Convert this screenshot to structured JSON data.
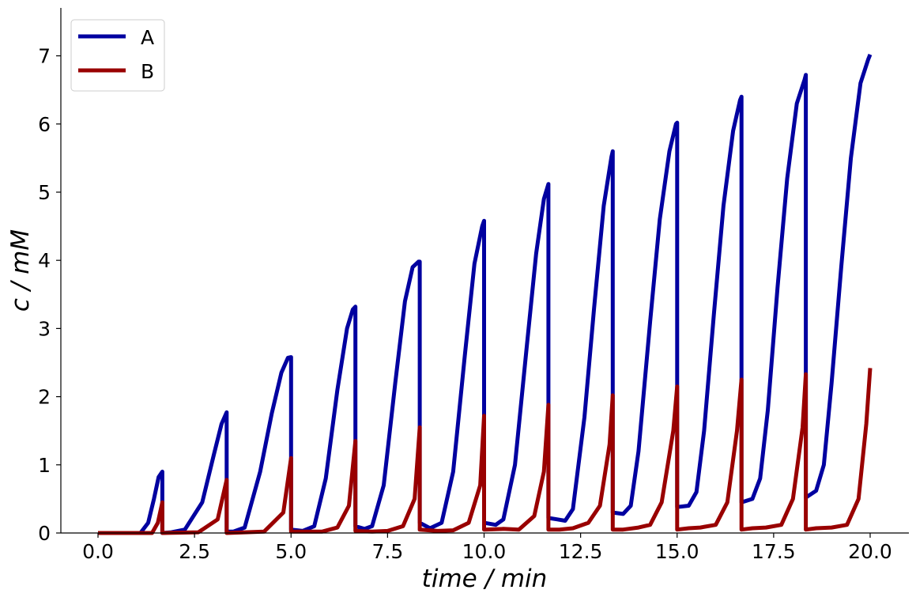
{
  "chart_data": {
    "type": "line",
    "title": "",
    "xlabel": "time / min",
    "ylabel": "c / mM",
    "xlim": [
      -0.9,
      21.0
    ],
    "ylim": [
      0,
      7.7
    ],
    "xticks": [
      0,
      2.5,
      5,
      7.5,
      10,
      12.5,
      15,
      17.5,
      20
    ],
    "xtick_labels": [
      "0.0",
      "2.5",
      "5.0",
      "7.5",
      "10.0",
      "12.5",
      "15.0",
      "17.5",
      "20.0"
    ],
    "yticks": [
      0,
      1,
      2,
      3,
      4,
      5,
      6,
      7
    ],
    "ytick_labels": [
      "0",
      "1",
      "2",
      "3",
      "4",
      "5",
      "6",
      "7"
    ],
    "grid": false,
    "legend_position": "top-left",
    "colors": {
      "A": "#0000a0",
      "B": "#990000"
    },
    "series": [
      {
        "name": "A",
        "x": [
          0,
          1.1,
          1.3,
          1.45,
          1.57,
          1.667,
          1.667,
          1.9,
          2.25,
          2.7,
          3.0,
          3.2,
          3.333,
          3.333,
          3.5,
          3.8,
          4.2,
          4.5,
          4.75,
          4.92,
          5.0,
          5.0,
          5.3,
          5.6,
          5.9,
          6.2,
          6.45,
          6.6,
          6.667,
          6.667,
          6.9,
          7.1,
          7.4,
          7.7,
          7.95,
          8.15,
          8.3,
          8.333,
          8.333,
          8.6,
          8.9,
          9.2,
          9.5,
          9.75,
          9.95,
          10.0,
          10.0,
          10.3,
          10.5,
          10.8,
          11.1,
          11.35,
          11.55,
          11.667,
          11.667,
          11.9,
          12.1,
          12.3,
          12.6,
          12.85,
          13.1,
          13.3,
          13.333,
          13.333,
          13.6,
          13.8,
          14.0,
          14.3,
          14.55,
          14.8,
          14.97,
          15.0,
          15.0,
          15.3,
          15.5,
          15.7,
          15.95,
          16.2,
          16.45,
          16.63,
          16.667,
          16.667,
          16.95,
          17.15,
          17.35,
          17.6,
          17.85,
          18.1,
          18.3,
          18.333,
          18.333,
          18.6,
          18.8,
          19.0,
          19.25,
          19.5,
          19.75,
          19.95,
          20.0
        ],
        "y": [
          0,
          0,
          0.15,
          0.5,
          0.82,
          0.9,
          0,
          0.01,
          0.05,
          0.45,
          1.15,
          1.6,
          1.77,
          0.02,
          0.02,
          0.08,
          0.9,
          1.75,
          2.35,
          2.57,
          2.58,
          0.05,
          0.03,
          0.1,
          0.8,
          2.1,
          3.0,
          3.28,
          3.32,
          0.1,
          0.06,
          0.1,
          0.7,
          2.2,
          3.4,
          3.9,
          3.98,
          3.98,
          0.15,
          0.07,
          0.15,
          0.9,
          2.6,
          3.95,
          4.5,
          4.58,
          0.15,
          0.12,
          0.2,
          1.0,
          2.7,
          4.1,
          4.9,
          5.12,
          0.22,
          0.2,
          0.18,
          0.35,
          1.7,
          3.3,
          4.8,
          5.52,
          5.6,
          0.3,
          0.28,
          0.4,
          1.2,
          3.1,
          4.6,
          5.6,
          6.0,
          6.02,
          0.38,
          0.4,
          0.6,
          1.5,
          3.2,
          4.8,
          5.9,
          6.35,
          6.4,
          0.45,
          0.5,
          0.8,
          1.8,
          3.6,
          5.2,
          6.3,
          6.65,
          6.72,
          0.52,
          0.62,
          1.0,
          2.2,
          3.9,
          5.5,
          6.6,
          6.95,
          7.02
        ]
      },
      {
        "name": "B",
        "x": [
          0,
          1.4,
          1.55,
          1.667,
          1.667,
          2.6,
          3.1,
          3.333,
          3.333,
          4.3,
          4.8,
          5.0,
          5.0,
          5.4,
          5.8,
          6.2,
          6.5,
          6.667,
          6.667,
          7.1,
          7.5,
          7.9,
          8.2,
          8.333,
          8.333,
          8.8,
          9.2,
          9.6,
          9.9,
          10.0,
          10.0,
          10.5,
          10.9,
          11.3,
          11.55,
          11.667,
          11.667,
          11.95,
          12.3,
          12.7,
          13.0,
          13.25,
          13.333,
          13.333,
          13.6,
          14.0,
          14.3,
          14.6,
          14.9,
          15.0,
          15.0,
          15.3,
          15.6,
          16.0,
          16.3,
          16.55,
          16.667,
          16.667,
          16.95,
          17.3,
          17.7,
          18.0,
          18.25,
          18.333,
          18.333,
          18.6,
          19.0,
          19.4,
          19.7,
          19.9,
          20.0
        ],
        "y": [
          0,
          0,
          0.15,
          0.45,
          0,
          0.01,
          0.2,
          0.78,
          0,
          0.02,
          0.3,
          1.1,
          0.02,
          0.02,
          0.02,
          0.08,
          0.4,
          1.35,
          0.03,
          0.02,
          0.03,
          0.1,
          0.5,
          1.55,
          0.05,
          0.03,
          0.04,
          0.15,
          0.7,
          1.72,
          0.05,
          0.06,
          0.05,
          0.25,
          0.9,
          1.88,
          0.05,
          0.05,
          0.07,
          0.15,
          0.4,
          1.3,
          2.02,
          0.05,
          0.05,
          0.08,
          0.12,
          0.45,
          1.5,
          2.15,
          0.05,
          0.07,
          0.08,
          0.12,
          0.45,
          1.5,
          2.25,
          0.05,
          0.07,
          0.08,
          0.12,
          0.5,
          1.55,
          2.33,
          0.05,
          0.07,
          0.08,
          0.12,
          0.5,
          1.6,
          2.42
        ]
      }
    ]
  }
}
